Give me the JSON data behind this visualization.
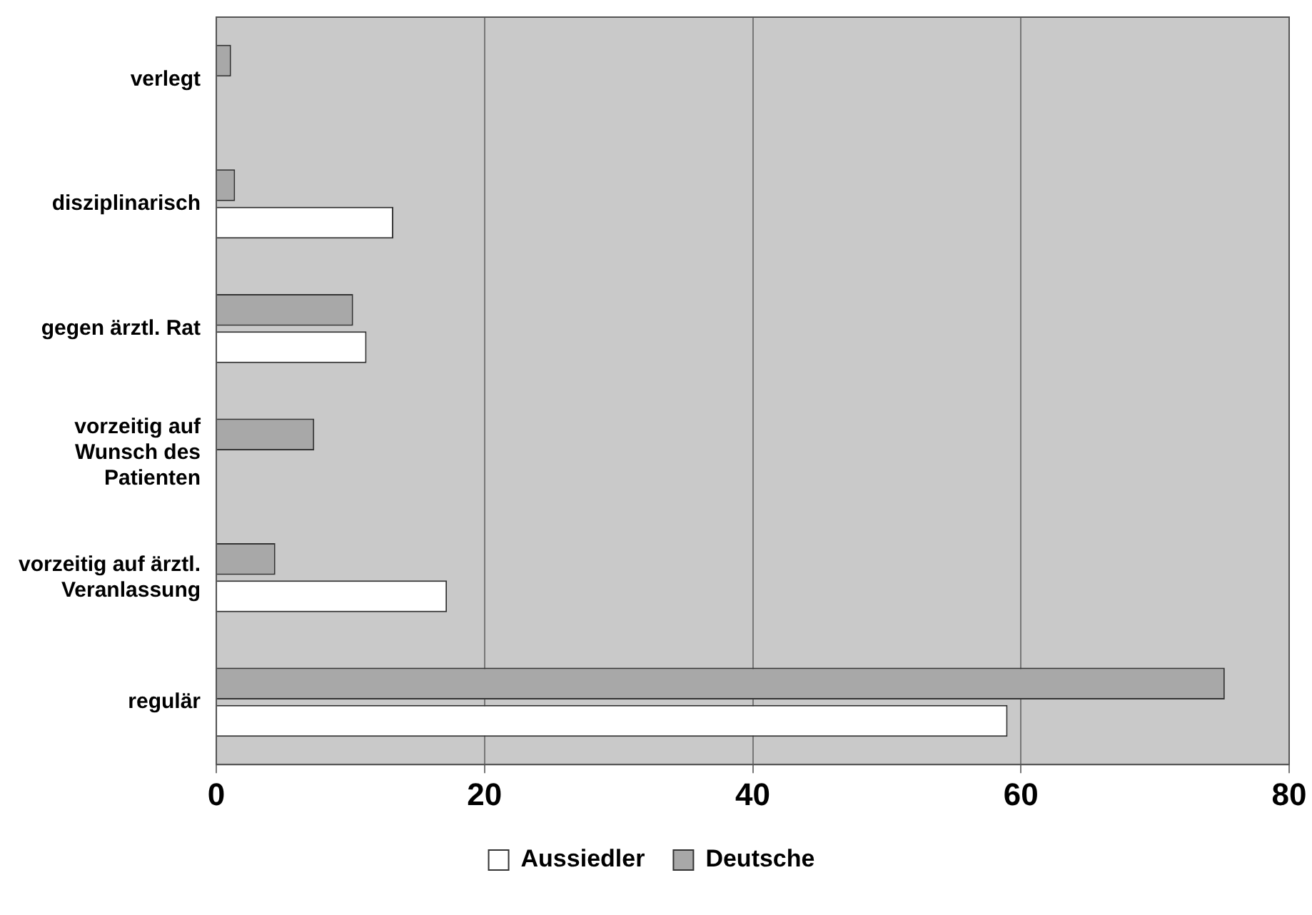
{
  "chart_data": {
    "type": "bar",
    "orientation": "horizontal",
    "categories": [
      "verlegt",
      "disziplinarisch",
      "gegen ärztl. Rat",
      "vorzeitig auf Wunsch des Patienten",
      "vorzeitig auf ärztl. Veranlassung",
      "regulär"
    ],
    "series": [
      {
        "name": "Aussiedler",
        "color": "#ffffff",
        "values": [
          0,
          13.2,
          11.2,
          0,
          17.2,
          59
        ]
      },
      {
        "name": "Deutsche",
        "color": "#a8a8a8",
        "values": [
          1.1,
          1.4,
          10.2,
          7.3,
          4.4,
          75.2
        ]
      }
    ],
    "xlim": [
      0,
      80
    ],
    "xticks": [
      0,
      20,
      40,
      60,
      80
    ],
    "grid": "x",
    "legend": "bottom"
  }
}
